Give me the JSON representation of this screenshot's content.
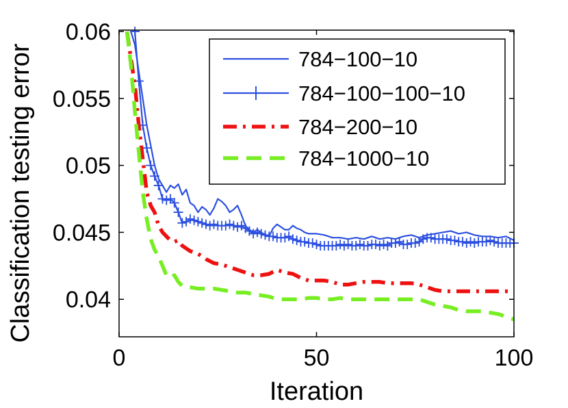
{
  "chart_data": {
    "type": "line",
    "title": "",
    "xlabel": "Iteration",
    "ylabel": "Classification testing error",
    "xlim": [
      0,
      100
    ],
    "ylim": [
      0.0372,
      0.0601
    ],
    "xticks": [
      0,
      50,
      100
    ],
    "xtick_labels": [
      "0",
      "50",
      "100"
    ],
    "yticks": [
      0.04,
      0.045,
      0.05,
      0.055,
      0.06
    ],
    "ytick_labels": [
      "0.04",
      "0.045",
      "0.05",
      "0.055",
      "0.06"
    ],
    "grid": false,
    "legend_position": "top-right",
    "series": [
      {
        "name": "784−100−10",
        "color": "#2b4fe0",
        "style": "solid",
        "marker": "none",
        "x": [
          3,
          4,
          5,
          6,
          7,
          8,
          9,
          10,
          11,
          12,
          13,
          14,
          15,
          16,
          17,
          18,
          19,
          20,
          21,
          22,
          23,
          24,
          25,
          26,
          27,
          28,
          29,
          30,
          31,
          32,
          33,
          34,
          35,
          36,
          37,
          38,
          39,
          40,
          41,
          42,
          43,
          44,
          45,
          46,
          47,
          48,
          49,
          50,
          52,
          54,
          56,
          58,
          60,
          62,
          64,
          66,
          68,
          70,
          72,
          74,
          76,
          78,
          80,
          82,
          84,
          86,
          88,
          90,
          92,
          94,
          96,
          98,
          100
        ],
        "values": [
          0.06,
          0.059,
          0.057,
          0.055,
          0.053,
          0.0515,
          0.05,
          0.049,
          0.0485,
          0.048,
          0.0485,
          0.0483,
          0.0486,
          0.0478,
          0.0482,
          0.0472,
          0.047,
          0.0465,
          0.0469,
          0.0467,
          0.0463,
          0.0468,
          0.0475,
          0.0473,
          0.047,
          0.0465,
          0.0467,
          0.047,
          0.0463,
          0.0455,
          0.0452,
          0.045,
          0.0452,
          0.045,
          0.0448,
          0.0447,
          0.0453,
          0.0456,
          0.0454,
          0.0452,
          0.0452,
          0.0455,
          0.0453,
          0.0452,
          0.045,
          0.0449,
          0.0449,
          0.0449,
          0.0448,
          0.0446,
          0.0446,
          0.0445,
          0.0446,
          0.0445,
          0.0447,
          0.0445,
          0.0446,
          0.0445,
          0.0447,
          0.0448,
          0.0446,
          0.0448,
          0.0449,
          0.045,
          0.0451,
          0.0449,
          0.045,
          0.0448,
          0.0447,
          0.0447,
          0.0446,
          0.0447,
          0.0444
        ]
      },
      {
        "name": "784−100−100−10",
        "color": "#2b4fe0",
        "style": "solid",
        "marker": "plus",
        "x": [
          4,
          5,
          6,
          7,
          8,
          9,
          10,
          11,
          12,
          13,
          14,
          15,
          16,
          17,
          18,
          19,
          20,
          21,
          22,
          23,
          24,
          25,
          26,
          27,
          28,
          29,
          30,
          31,
          32,
          33,
          34,
          35,
          36,
          37,
          38,
          39,
          40,
          41,
          42,
          43,
          44,
          45,
          46,
          47,
          48,
          49,
          50,
          51,
          52,
          53,
          54,
          55,
          56,
          57,
          58,
          59,
          60,
          61,
          62,
          63,
          64,
          65,
          66,
          67,
          68,
          69,
          70,
          71,
          72,
          73,
          74,
          75,
          76,
          77,
          78,
          79,
          80,
          81,
          82,
          83,
          84,
          85,
          86,
          87,
          88,
          89,
          90,
          91,
          92,
          93,
          94,
          95,
          96,
          97,
          98,
          99,
          100
        ],
        "values": [
          0.06,
          0.0563,
          0.053,
          0.0513,
          0.05,
          0.0492,
          0.0485,
          0.0475,
          0.0474,
          0.0475,
          0.0472,
          0.0465,
          0.0457,
          0.0458,
          0.046,
          0.0459,
          0.0458,
          0.0457,
          0.0456,
          0.0455,
          0.0456,
          0.0455,
          0.0455,
          0.0455,
          0.0456,
          0.0455,
          0.0454,
          0.0455,
          0.0453,
          0.0451,
          0.0449,
          0.045,
          0.0449,
          0.0448,
          0.0447,
          0.0447,
          0.0446,
          0.0446,
          0.0446,
          0.0447,
          0.0445,
          0.0444,
          0.0443,
          0.0443,
          0.0442,
          0.0442,
          0.0441,
          0.044,
          0.044,
          0.044,
          0.044,
          0.044,
          0.0441,
          0.044,
          0.0441,
          0.044,
          0.044,
          0.0441,
          0.044,
          0.044,
          0.0441,
          0.0441,
          0.044,
          0.0441,
          0.044,
          0.0442,
          0.0442,
          0.0443,
          0.0441,
          0.0441,
          0.0442,
          0.0442,
          0.0443,
          0.0445,
          0.0446,
          0.0446,
          0.0445,
          0.0445,
          0.0445,
          0.0445,
          0.0444,
          0.0444,
          0.0443,
          0.0443,
          0.0442,
          0.0443,
          0.0442,
          0.0443,
          0.0443,
          0.0443,
          0.0444,
          0.0443,
          0.0442,
          0.0442,
          0.0442,
          0.0442,
          0.0442
        ]
      },
      {
        "name": "784−200−10",
        "color": "#ee1111",
        "style": "dashdot",
        "marker": "none",
        "x": [
          2,
          3,
          4,
          5,
          6,
          7,
          8,
          9,
          10,
          11,
          12,
          13,
          14,
          15,
          16,
          17,
          18,
          19,
          20,
          22,
          24,
          26,
          28,
          30,
          32,
          34,
          36,
          38,
          40,
          42,
          44,
          46,
          48,
          50,
          52,
          54,
          56,
          58,
          60,
          62,
          64,
          66,
          68,
          70,
          72,
          74,
          76,
          78,
          80,
          82,
          84,
          86,
          88,
          90,
          92,
          94,
          96,
          98,
          100
        ],
        "values": [
          0.06,
          0.058,
          0.056,
          0.053,
          0.0505,
          0.048,
          0.047,
          0.0465,
          0.0455,
          0.045,
          0.0447,
          0.0444,
          0.0443,
          0.0444,
          0.044,
          0.0438,
          0.0436,
          0.0435,
          0.0434,
          0.043,
          0.0427,
          0.0426,
          0.0424,
          0.0422,
          0.042,
          0.0418,
          0.0418,
          0.0419,
          0.0422,
          0.042,
          0.0419,
          0.0416,
          0.0414,
          0.0414,
          0.0414,
          0.0413,
          0.0411,
          0.0411,
          0.0412,
          0.0413,
          0.0413,
          0.0413,
          0.0412,
          0.0412,
          0.0412,
          0.0412,
          0.0411,
          0.0409,
          0.0407,
          0.0406,
          0.0406,
          0.0406,
          0.0406,
          0.0406,
          0.0406,
          0.0406,
          0.0406,
          0.0406,
          0.0406
        ]
      },
      {
        "name": "784−1000−10",
        "color": "#77ee22",
        "style": "dashed",
        "marker": "none",
        "x": [
          2,
          3,
          4,
          5,
          6,
          7,
          8,
          9,
          10,
          11,
          12,
          13,
          14,
          15,
          16,
          18,
          20,
          22,
          24,
          26,
          28,
          30,
          32,
          34,
          36,
          38,
          40,
          42,
          44,
          46,
          48,
          50,
          52,
          54,
          56,
          58,
          60,
          62,
          64,
          66,
          68,
          70,
          72,
          74,
          76,
          78,
          80,
          82,
          84,
          86,
          88,
          90,
          92,
          94,
          96,
          98,
          100
        ],
        "values": [
          0.06,
          0.0575,
          0.054,
          0.051,
          0.048,
          0.046,
          0.0445,
          0.0437,
          0.0432,
          0.0425,
          0.0418,
          0.0416,
          0.0418,
          0.0413,
          0.041,
          0.0409,
          0.0408,
          0.0408,
          0.0408,
          0.0407,
          0.0406,
          0.0405,
          0.0405,
          0.0404,
          0.0403,
          0.0402,
          0.04,
          0.04,
          0.04,
          0.04,
          0.0401,
          0.0401,
          0.04,
          0.04,
          0.0401,
          0.04,
          0.04,
          0.04,
          0.04,
          0.04,
          0.04,
          0.04,
          0.04,
          0.04,
          0.04,
          0.0398,
          0.0396,
          0.0395,
          0.0394,
          0.0392,
          0.0391,
          0.0391,
          0.0391,
          0.039,
          0.0389,
          0.0387,
          0.0385
        ]
      }
    ]
  }
}
